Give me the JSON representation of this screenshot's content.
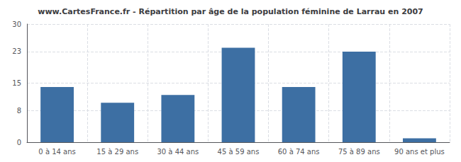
{
  "chart_data": {
    "type": "bar",
    "title": "www.CartesFrance.fr - Répartition par âge de la population féminine de Larrau en 2007",
    "categories": [
      "0 à 14 ans",
      "15 à 29 ans",
      "30 à 44 ans",
      "45 à 59 ans",
      "60 à 74 ans",
      "75 à 89 ans",
      "90 ans et plus"
    ],
    "values": [
      14,
      10,
      12,
      24,
      14,
      23,
      1
    ],
    "color": "#3d6fa3",
    "ylim": [
      0,
      30
    ],
    "yticks": [
      0,
      8,
      15,
      23,
      30
    ],
    "grid": true
  }
}
